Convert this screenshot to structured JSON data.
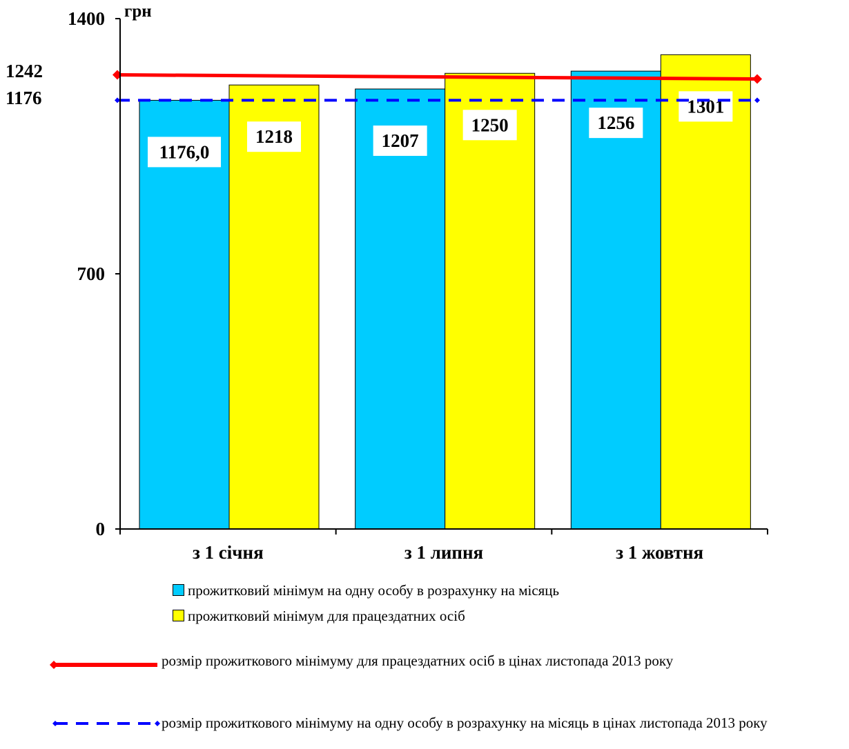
{
  "chart_data": {
    "type": "bar",
    "unit_label": "грн",
    "ylim": [
      0,
      1400
    ],
    "yticks": [
      0,
      700,
      1400
    ],
    "extra_ylabels": [
      "1242",
      "1176"
    ],
    "categories": [
      "з 1 січня",
      "з 1 липня",
      "з 1 жовтня"
    ],
    "series": [
      {
        "name": "прожитковий мінімум на одну особу в розрахунку на місяць",
        "color": "#00CCFF",
        "values": [
          1176,
          1207,
          1256
        ],
        "labels": [
          "1176,0",
          "1207",
          "1256"
        ]
      },
      {
        "name": "прожитковий мінімум для працездатних осіб",
        "color": "#FFFF00",
        "values": [
          1218,
          1250,
          1301
        ],
        "labels": [
          "1218",
          "1250",
          "1301"
        ]
      }
    ],
    "reference_lines": [
      {
        "name": "розмір прожиткового мінімуму для працездатних осіб в цінах листопада 2013 року",
        "value": 1242,
        "color": "#FF0000",
        "style": "solid"
      },
      {
        "name": "розмір прожиткового мінімуму на одну особу в розрахунку на місяць в цінах листопада 2013 року",
        "value": 1176,
        "color": "#0000FF",
        "style": "dashed"
      }
    ],
    "grid": false,
    "legend_position": "bottom"
  }
}
